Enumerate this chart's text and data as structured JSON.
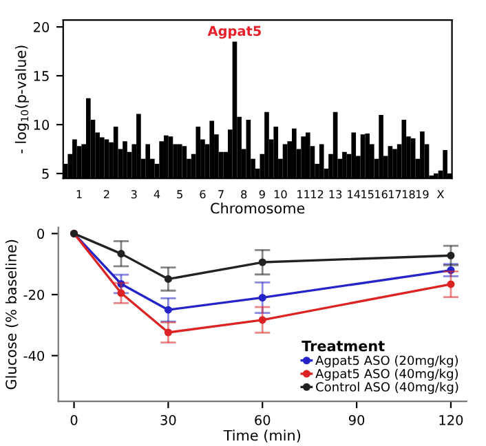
{
  "chart_data": [
    {
      "type": "bar",
      "ylabel": "- log$_{10}$(p-value)",
      "xlabel": "Chromosome",
      "color": "#000000",
      "annotations": [
        "Agpat5"
      ],
      "categories": [
        null,
        null,
        null,
        "1",
        null,
        null,
        null,
        null,
        null,
        "2",
        null,
        null,
        null,
        null,
        null,
        "3",
        null,
        null,
        null,
        null,
        "4",
        null,
        null,
        null,
        null,
        "5",
        null,
        null,
        null,
        null,
        "6",
        null,
        null,
        null,
        "7",
        null,
        null,
        null,
        null,
        "8",
        null,
        null,
        null,
        "9",
        null,
        null,
        null,
        "10",
        null,
        null,
        null,
        null,
        "11",
        null,
        null,
        "12",
        null,
        null,
        null,
        "13",
        null,
        null,
        null,
        "14",
        null,
        null,
        "15",
        null,
        null,
        "16",
        null,
        null,
        "17",
        null,
        null,
        "18",
        null,
        null,
        "19",
        null,
        null,
        null,
        "X",
        null,
        null
      ],
      "values": [
        6.0,
        7.0,
        8.5,
        7.8,
        8.0,
        12.7,
        10.5,
        9.2,
        8.7,
        8.5,
        8.2,
        9.8,
        7.5,
        8.3,
        7.2,
        8.0,
        11.1,
        6.5,
        8.0,
        6.5,
        6.0,
        8.3,
        8.9,
        8.8,
        8.0,
        8.0,
        7.8,
        6.5,
        7.0,
        9.8,
        8.5,
        8.0,
        10.4,
        9.0,
        7.2,
        7.2,
        9.5,
        18.5,
        10.8,
        7.5,
        10.5,
        6.5,
        5.5,
        7.0,
        11.3,
        8.5,
        9.8,
        6.5,
        8.0,
        8.3,
        9.6,
        7.5,
        8.8,
        9.2,
        7.8,
        6.0,
        8.0,
        5.5,
        7.0,
        11.3,
        6.5,
        7.2,
        7.0,
        9.2,
        6.8,
        9.0,
        9.1,
        8.0,
        6.5,
        11.0,
        6.8,
        7.8,
        7.5,
        8.0,
        10.5,
        8.8,
        8.6,
        6.5,
        9.3,
        8.0,
        4.8,
        5.0,
        5.3,
        7.4,
        5.0
      ],
      "ylim": [
        4.5,
        20.7
      ],
      "yticks": [
        5,
        10,
        15,
        20
      ],
      "grid": false
    },
    {
      "type": "line",
      "xlabel": "Time (min)",
      "ylabel": "Glucose (% baseline)",
      "legend_title": "Treatment",
      "legend": "bottom right",
      "marker": "circle",
      "line_style": "solid",
      "grid": false,
      "x": [
        0,
        15,
        30,
        60,
        120
      ],
      "series": [
        {
          "name": "Agpat5 ASO (20mg/kg)",
          "color": "#2424c8",
          "values": [
            0,
            -16.5,
            -25,
            -21,
            -12
          ],
          "errors": [
            null,
            3,
            3.8,
            5,
            2
          ]
        },
        {
          "name": "Agpat5 ASO (40mg/kg)",
          "color": "#dc2424",
          "values": [
            0,
            -19.5,
            -32.4,
            -28.3,
            -16.6
          ],
          "errors": [
            null,
            3.3,
            3.3,
            4.2,
            4.2
          ]
        },
        {
          "name": "Control ASO (40mg/kg)",
          "color": "#222222",
          "values": [
            0,
            -6.6,
            -14.9,
            -9.4,
            -7.2
          ],
          "errors": [
            null,
            4.1,
            3.8,
            4,
            3.2
          ]
        }
      ],
      "xlim": [
        -5,
        125
      ],
      "xticks": [
        0,
        30,
        60,
        90,
        120
      ],
      "ylim": [
        -55,
        2
      ],
      "yticks": [
        0,
        -20,
        -40
      ]
    }
  ]
}
